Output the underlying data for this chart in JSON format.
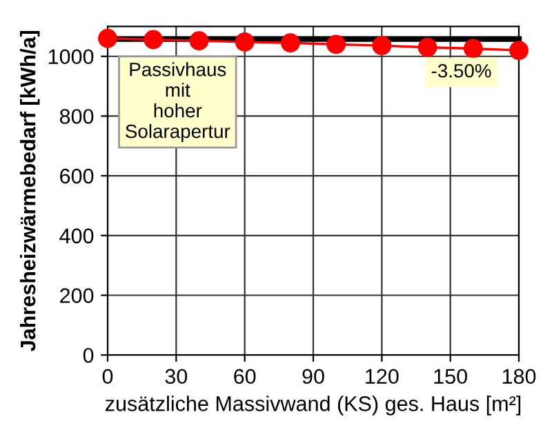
{
  "chart_data": {
    "type": "line",
    "xlabel": "zusätzliche Massivwand (KS) ges. Haus [m²]",
    "ylabel": "Jahresheizwärmebedarf [kWh/a]",
    "x": [
      0,
      20,
      40,
      60,
      80,
      100,
      120,
      140,
      160,
      180
    ],
    "series": [
      {
        "color": "#000000",
        "marker": "none",
        "x": [
          0,
          180
        ],
        "values": [
          1058,
          1058
        ]
      },
      {
        "color": "#ff0000",
        "marker": "circle",
        "values": [
          1060,
          1056,
          1052,
          1048,
          1045,
          1040,
          1036,
          1030,
          1026,
          1020
        ]
      }
    ],
    "annotations": [
      "Passivhaus\nmit\nhoher\nSolarapertur",
      "-3.50%"
    ],
    "xlim": [
      0,
      180
    ],
    "xticks": [
      0,
      30,
      60,
      90,
      120,
      150,
      180
    ],
    "ylim": [
      0,
      1100
    ],
    "yticks": [
      0,
      200,
      400,
      600,
      800,
      1000
    ],
    "grid": true,
    "legend": false
  }
}
